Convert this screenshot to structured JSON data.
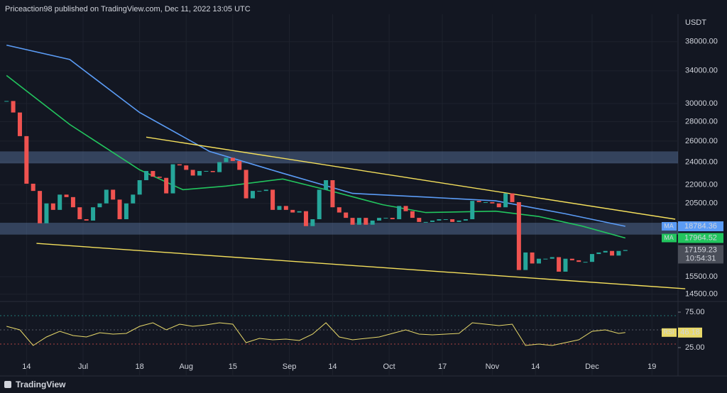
{
  "header": {
    "text": "Priceaction98 published on TradingView.com, Dec 11, 2022 13:05 UTC"
  },
  "footer": {
    "brand": "TradingView"
  },
  "chart_data": {
    "type": "candlestick",
    "currency": "USDT",
    "log_scale": true,
    "grid": true,
    "up_color": "#26a69a",
    "down_color": "#ef5350",
    "ylim": [
      14100,
      42200
    ],
    "yticks": [
      {
        "value": 38000,
        "label": "38000.00"
      },
      {
        "value": 34000,
        "label": "34000.00"
      },
      {
        "value": 30000,
        "label": "30000.00"
      },
      {
        "value": 28000,
        "label": "28000.00"
      },
      {
        "value": 26000,
        "label": "26000.00"
      },
      {
        "value": 24000,
        "label": "24000.00"
      },
      {
        "value": 22000,
        "label": "22000.00"
      },
      {
        "value": 20500,
        "label": "20500.00"
      },
      {
        "value": 15500,
        "label": "15500.00"
      },
      {
        "value": 14500,
        "label": "14500.00"
      }
    ],
    "xticks": [
      {
        "value": "06-14",
        "label": "14"
      },
      {
        "value": "07-01",
        "label": "Jul"
      },
      {
        "value": "07-18",
        "label": "18"
      },
      {
        "value": "08-01",
        "label": "Aug"
      },
      {
        "value": "08-15",
        "label": "15"
      },
      {
        "value": "09-01",
        "label": "Sep"
      },
      {
        "value": "09-14",
        "label": "14"
      },
      {
        "value": "10-01",
        "label": "Oct"
      },
      {
        "value": "10-17",
        "label": "17"
      },
      {
        "value": "11-01",
        "label": "Nov"
      },
      {
        "value": "11-14",
        "label": "14"
      },
      {
        "value": "12-01",
        "label": "Dec"
      },
      {
        "value": "12-19",
        "label": "19"
      }
    ],
    "x": [
      "06-08",
      "06-10",
      "06-12",
      "06-14",
      "06-16",
      "06-18",
      "06-20",
      "06-22",
      "06-24",
      "06-26",
      "06-28",
      "06-30",
      "07-02",
      "07-04",
      "07-06",
      "07-08",
      "07-10",
      "07-12",
      "07-14",
      "07-16",
      "07-18",
      "07-20",
      "07-22",
      "07-24",
      "07-26",
      "07-28",
      "07-30",
      "08-01",
      "08-03",
      "08-05",
      "08-07",
      "08-09",
      "08-11",
      "08-13",
      "08-15",
      "08-17",
      "08-19",
      "08-21",
      "08-23",
      "08-25",
      "08-27",
      "08-29",
      "08-31",
      "09-02",
      "09-04",
      "09-06",
      "09-08",
      "09-10",
      "09-12",
      "09-14",
      "09-16",
      "09-18",
      "09-20",
      "09-22",
      "09-24",
      "09-26",
      "09-28",
      "09-30",
      "10-02",
      "10-04",
      "10-06",
      "10-08",
      "10-10",
      "10-12",
      "10-14",
      "10-16",
      "10-18",
      "10-20",
      "10-22",
      "10-24",
      "10-26",
      "10-28",
      "10-30",
      "11-01",
      "11-03",
      "11-05",
      "11-07",
      "11-09",
      "11-11",
      "11-13",
      "11-15",
      "11-17",
      "11-19",
      "11-21",
      "11-23",
      "11-25",
      "11-27",
      "11-29",
      "12-01",
      "12-03",
      "12-05",
      "12-07",
      "12-09",
      "12-11"
    ],
    "close": [
      30300,
      29000,
      26500,
      22100,
      21500,
      19000,
      20500,
      20000,
      21200,
      21000,
      20200,
      19300,
      19200,
      20200,
      20500,
      21600,
      20800,
      19300,
      20500,
      21200,
      22400,
      23200,
      22700,
      22600,
      21300,
      23800,
      23700,
      23300,
      22800,
      23200,
      23200,
      23100,
      24000,
      24400,
      24100,
      23300,
      20900,
      21500,
      21500,
      21600,
      20000,
      20300,
      20000,
      19800,
      19900,
      18800,
      19300,
      21600,
      22400,
      20200,
      19800,
      19400,
      18900,
      19400,
      18900,
      19200,
      19400,
      19400,
      19300,
      20300,
      19900,
      19400,
      19100,
      19100,
      19200,
      19300,
      19300,
      19100,
      19200,
      19300,
      20700,
      20600,
      20600,
      20500,
      20200,
      21300,
      20600,
      15900,
      17000,
      16300,
      16600,
      16600,
      16700,
      15800,
      16600,
      16500,
      16400,
      16400,
      16900,
      17000,
      17100,
      16800,
      17100,
      17159.23
    ],
    "countdown": "10:54:31",
    "moving_averages": [
      {
        "label": "MA",
        "color": "#5b9cf6",
        "last_value": 18784.36,
        "x": [
          "06-08",
          "06-27",
          "07-18",
          "08-08",
          "08-30",
          "09-20",
          "10-12",
          "11-02",
          "11-23",
          "12-11"
        ],
        "values": [
          37500,
          35500,
          29000,
          25000,
          23000,
          21300,
          21000,
          20700,
          19700,
          18784.36
        ]
      },
      {
        "label": "MA",
        "color": "#22c55e",
        "last_value": 17964.52,
        "x": [
          "06-08",
          "06-27",
          "07-18",
          "07-31",
          "08-13",
          "08-30",
          "09-12",
          "09-29",
          "10-12",
          "11-02",
          "11-15",
          "11-28",
          "12-11"
        ],
        "values": [
          33400,
          27700,
          23300,
          21600,
          21900,
          22500,
          21600,
          20400,
          19800,
          19900,
          19500,
          18800,
          17964.52
        ]
      }
    ],
    "trendlines": [
      {
        "color": "#f5e05c",
        "x": [
          "07-20",
          "12-26"
        ],
        "values": [
          26400,
          19300
        ]
      },
      {
        "color": "#f5e05c",
        "x": [
          "06-17",
          "12-29"
        ],
        "values": [
          17600,
          14800
        ]
      }
    ],
    "zones": [
      {
        "values": [
          23880,
          25000
        ]
      },
      {
        "values": [
          18200,
          19040
        ]
      }
    ],
    "rsi": {
      "label": "RSI",
      "color": "#e8d96a",
      "last_value": 46.18,
      "ylim": [
        5,
        85
      ],
      "yticks": [
        {
          "value": 75,
          "label": "75.00"
        },
        {
          "value": 25,
          "label": "25.00"
        }
      ],
      "bands": [
        70,
        50,
        30
      ],
      "x": [
        "06-08",
        "06-12",
        "06-16",
        "06-20",
        "06-24",
        "06-28",
        "07-02",
        "07-06",
        "07-10",
        "07-14",
        "07-18",
        "07-22",
        "07-26",
        "07-30",
        "08-03",
        "08-07",
        "08-11",
        "08-15",
        "08-19",
        "08-23",
        "08-27",
        "08-31",
        "09-04",
        "09-08",
        "09-12",
        "09-16",
        "09-20",
        "09-24",
        "09-28",
        "10-02",
        "10-06",
        "10-10",
        "10-14",
        "10-18",
        "10-22",
        "10-26",
        "10-30",
        "11-03",
        "11-07",
        "11-11",
        "11-15",
        "11-19",
        "11-23",
        "11-27",
        "12-01",
        "12-05",
        "12-09",
        "12-11"
      ],
      "values": [
        55,
        50,
        28,
        40,
        48,
        42,
        40,
        46,
        44,
        45,
        55,
        60,
        50,
        58,
        55,
        57,
        60,
        58,
        32,
        38,
        36,
        37,
        35,
        44,
        60,
        40,
        36,
        38,
        40,
        45,
        50,
        44,
        43,
        44,
        45,
        60,
        58,
        56,
        58,
        28,
        30,
        28,
        32,
        36,
        48,
        50,
        45,
        46.18
      ]
    }
  }
}
